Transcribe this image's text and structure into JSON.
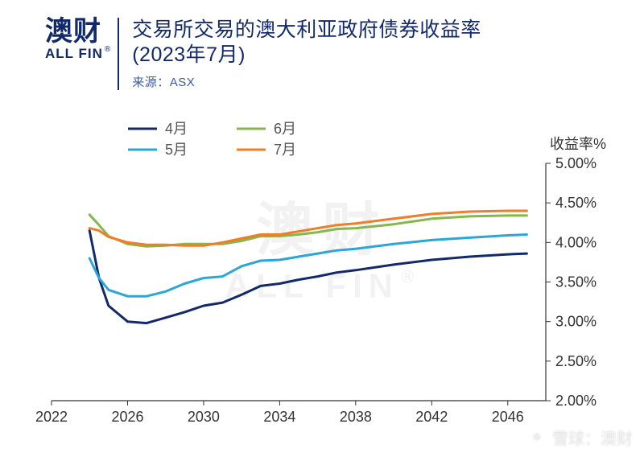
{
  "logo": {
    "cn": "澳财",
    "en": "ALL FIN"
  },
  "title": {
    "line1": "交易所交易的澳大利亚政府债券收益率",
    "line2": "(2023年7月)"
  },
  "source": "来源：ASX",
  "ylabel": "收益率%",
  "watermark": {
    "cn": "澳财",
    "en": "ALL FIN"
  },
  "footer": "雪球：澳财",
  "chart": {
    "type": "line",
    "background_color": "#ffffff",
    "axis_color": "#333333",
    "axis_width": 1.2,
    "tick_font_size": 18,
    "tick_font_color": "#333333",
    "x": {
      "min": 2022,
      "max": 2048,
      "ticks": [
        2022,
        2026,
        2030,
        2034,
        2038,
        2042,
        2046
      ]
    },
    "y": {
      "min": 2.0,
      "max": 5.0,
      "step": 0.5,
      "ticks": [
        "2.00%",
        "2.50%",
        "3.00%",
        "3.50%",
        "4.00%",
        "4.50%",
        "5.00%"
      ]
    },
    "legend": {
      "position": "top",
      "items": [
        {
          "name": "4月",
          "color": "#122a6b"
        },
        {
          "name": "5月",
          "color": "#2aa7d6"
        },
        {
          "name": "6月",
          "color": "#84b84a"
        },
        {
          "name": "7月",
          "color": "#f07d2a"
        }
      ]
    },
    "series": [
      {
        "name": "4月",
        "color": "#122a6b",
        "width": 3,
        "points": [
          [
            2024,
            4.15
          ],
          [
            2024.5,
            3.55
          ],
          [
            2025,
            3.2
          ],
          [
            2026,
            3.0
          ],
          [
            2027,
            2.98
          ],
          [
            2028,
            3.05
          ],
          [
            2029,
            3.12
          ],
          [
            2030,
            3.2
          ],
          [
            2031,
            3.24
          ],
          [
            2032,
            3.34
          ],
          [
            2033,
            3.45
          ],
          [
            2034,
            3.48
          ],
          [
            2035,
            3.53
          ],
          [
            2036,
            3.57
          ],
          [
            2037,
            3.62
          ],
          [
            2038,
            3.65
          ],
          [
            2040,
            3.72
          ],
          [
            2042,
            3.78
          ],
          [
            2044,
            3.82
          ],
          [
            2046,
            3.85
          ],
          [
            2047,
            3.86
          ]
        ]
      },
      {
        "name": "5月",
        "color": "#2aa7d6",
        "width": 3,
        "points": [
          [
            2024,
            3.8
          ],
          [
            2024.5,
            3.55
          ],
          [
            2025,
            3.4
          ],
          [
            2026,
            3.32
          ],
          [
            2027,
            3.32
          ],
          [
            2028,
            3.38
          ],
          [
            2029,
            3.48
          ],
          [
            2030,
            3.55
          ],
          [
            2031,
            3.57
          ],
          [
            2032,
            3.7
          ],
          [
            2033,
            3.77
          ],
          [
            2034,
            3.78
          ],
          [
            2035,
            3.82
          ],
          [
            2036,
            3.86
          ],
          [
            2037,
            3.9
          ],
          [
            2038,
            3.92
          ],
          [
            2040,
            3.98
          ],
          [
            2042,
            4.03
          ],
          [
            2044,
            4.06
          ],
          [
            2046,
            4.09
          ],
          [
            2047,
            4.1
          ]
        ]
      },
      {
        "name": "6月",
        "color": "#84b84a",
        "width": 3,
        "points": [
          [
            2024,
            4.35
          ],
          [
            2024.5,
            4.22
          ],
          [
            2025,
            4.08
          ],
          [
            2026,
            3.98
          ],
          [
            2027,
            3.95
          ],
          [
            2028,
            3.96
          ],
          [
            2029,
            3.98
          ],
          [
            2030,
            3.98
          ],
          [
            2031,
            3.98
          ],
          [
            2032,
            4.02
          ],
          [
            2033,
            4.08
          ],
          [
            2034,
            4.08
          ],
          [
            2035,
            4.1
          ],
          [
            2036,
            4.13
          ],
          [
            2037,
            4.17
          ],
          [
            2038,
            4.18
          ],
          [
            2040,
            4.23
          ],
          [
            2042,
            4.3
          ],
          [
            2044,
            4.33
          ],
          [
            2046,
            4.34
          ],
          [
            2047,
            4.34
          ]
        ]
      },
      {
        "name": "7月",
        "color": "#f07d2a",
        "width": 3,
        "points": [
          [
            2024,
            4.18
          ],
          [
            2024.5,
            4.15
          ],
          [
            2025,
            4.07
          ],
          [
            2026,
            4.0
          ],
          [
            2027,
            3.97
          ],
          [
            2028,
            3.97
          ],
          [
            2029,
            3.96
          ],
          [
            2030,
            3.96
          ],
          [
            2031,
            4.0
          ],
          [
            2032,
            4.05
          ],
          [
            2033,
            4.1
          ],
          [
            2034,
            4.1
          ],
          [
            2035,
            4.14
          ],
          [
            2036,
            4.18
          ],
          [
            2037,
            4.22
          ],
          [
            2038,
            4.24
          ],
          [
            2040,
            4.3
          ],
          [
            2042,
            4.36
          ],
          [
            2044,
            4.39
          ],
          [
            2046,
            4.4
          ],
          [
            2047,
            4.4
          ]
        ]
      }
    ]
  }
}
